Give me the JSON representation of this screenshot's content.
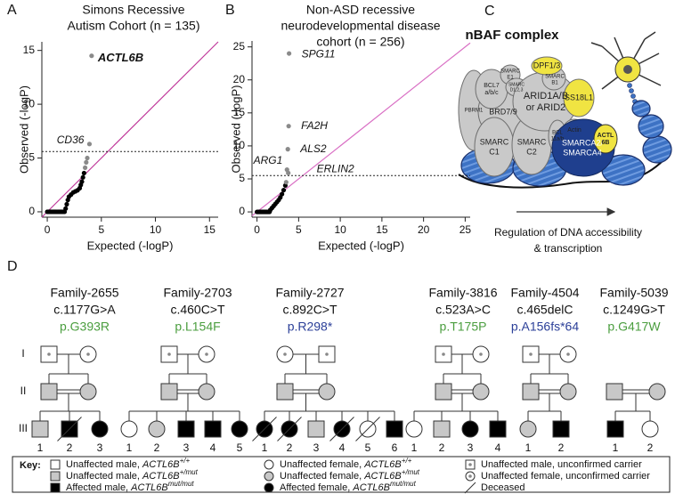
{
  "chart_data": [
    {
      "type": "scatter",
      "panel": "A",
      "title": [
        "Simons Recessive",
        "Autism Cohort (n = 135)"
      ],
      "x_label": "Expected (-logP)",
      "y_label": "Observed (-logP)",
      "xlim": [
        -0.5,
        15.8
      ],
      "ylim": [
        -0.5,
        15.8
      ],
      "xticks": [
        0,
        5,
        10,
        15
      ],
      "yticks": [
        0,
        5,
        10,
        15
      ],
      "threshold": 5.6,
      "diagonal_color": "#c0399b",
      "series": [
        {
          "color": "#000000",
          "x": [
            0,
            0.1,
            0.2,
            0.3,
            0.4,
            0.5,
            0.6,
            0.7,
            0.8,
            0.9,
            1.0,
            1.1,
            1.2,
            1.3,
            1.4,
            1.5,
            1.6,
            1.7,
            1.8,
            1.9,
            2.0,
            2.2,
            2.4,
            2.6,
            2.8,
            3.0,
            3.1,
            3.2,
            3.3,
            3.4
          ],
          "values": [
            0,
            0,
            0,
            0,
            0,
            0,
            0,
            0,
            0,
            0,
            0,
            0,
            0,
            0,
            0,
            0,
            0,
            0.3,
            0.7,
            1.1,
            1.4,
            1.6,
            1.8,
            1.9,
            2.0,
            2.2,
            2.5,
            2.8,
            3.2,
            3.6
          ]
        },
        {
          "color": "#8a8a8a",
          "x": [
            3.5,
            3.6,
            3.7
          ],
          "values": [
            4.1,
            4.6,
            5.0
          ]
        },
        {
          "color": "#8a8a8a",
          "x": [
            3.9,
            4.1
          ],
          "values": [
            6.3,
            14.5
          ],
          "point_labels": [
            "CD36",
            "ACTL6B"
          ]
        }
      ]
    },
    {
      "type": "scatter",
      "panel": "B",
      "title": [
        "Non-ASD recessive",
        "neurodevelopmental disease",
        "cohort (n = 256)"
      ],
      "x_label": "Expected (-logP)",
      "y_label": "Observed (-logP)",
      "xlim": [
        -0.6,
        25.6
      ],
      "ylim": [
        -0.8,
        25.9
      ],
      "xticks": [
        0,
        5,
        10,
        15,
        20,
        25
      ],
      "yticks": [
        0,
        5,
        10,
        15,
        20,
        25
      ],
      "threshold": 5.5,
      "diagonal_color": "#d96fc4",
      "series": [
        {
          "color": "#000000",
          "x": [
            0,
            0.1,
            0.2,
            0.3,
            0.4,
            0.5,
            0.6,
            0.7,
            0.8,
            0.9,
            1.0,
            1.1,
            1.2,
            1.3,
            1.4,
            1.5,
            1.6,
            1.8,
            2.0,
            2.2,
            2.4,
            2.6,
            2.8,
            3.0,
            3.2,
            3.4
          ],
          "values": [
            0,
            0,
            0,
            0,
            0,
            0,
            0,
            0,
            0,
            0,
            0,
            0,
            0,
            0,
            0,
            0,
            0.3,
            0.6,
            0.9,
            1.2,
            1.5,
            1.8,
            2.2,
            2.7,
            3.3,
            4.0
          ]
        },
        {
          "color": "#8a8a8a",
          "x": [
            3.5
          ],
          "values": [
            4.5
          ]
        },
        {
          "color": "#8a8a8a",
          "x": [
            3.6,
            3.75,
            3.7,
            3.8,
            3.85
          ],
          "values": [
            6.4,
            5.9,
            9.5,
            13.0,
            24.0
          ],
          "point_labels": [
            "ARG1",
            "ERLIN2",
            "ALS2",
            "FA2H",
            "SPG11"
          ]
        }
      ]
    }
  ],
  "panel_c": {
    "panel": "C",
    "title": "nBAF complex",
    "components": [
      [
        "PBRM1"
      ],
      [
        "BCL7",
        "a/b/c"
      ],
      [
        "SMARC",
        "E1"
      ],
      [
        "SMARC",
        "D1,2,3"
      ],
      [
        "DPF1/3"
      ],
      [
        "SMARC",
        "B1"
      ],
      [
        "BRD7/9"
      ],
      [
        "ARID1A/B",
        "or ARID2"
      ],
      [
        "SS18L1"
      ],
      [
        "SMARC",
        "C1"
      ],
      [
        "SMARC",
        "C2"
      ],
      [
        "BCL",
        "11a/b"
      ],
      [
        "Actin"
      ],
      [
        "SMARCA2/",
        "SMARCA4"
      ],
      [
        "ACTL",
        "6B"
      ]
    ],
    "caption": [
      "Regulation of DNA accessibility",
      "& transcription"
    ]
  },
  "panel_d": {
    "panel": "D",
    "generations": [
      "I",
      "II",
      "III"
    ],
    "families": [
      {
        "name": "Family-2655",
        "mutation": "c.1177G>A",
        "protein": "p.G393R",
        "protein_color": "#4a9d3e",
        "children": [
          "1",
          "2",
          "3"
        ]
      },
      {
        "name": "Family-2703",
        "mutation": "c.460C>T",
        "protein": "p.L154F",
        "protein_color": "#4a9d3e",
        "children": [
          "1",
          "2",
          "3",
          "4",
          "5"
        ]
      },
      {
        "name": "Family-2727",
        "mutation": "c.892C>T",
        "protein": "p.R298*",
        "protein_color": "#2b3f98",
        "children": [
          "1",
          "2",
          "3",
          "4",
          "5",
          "6"
        ]
      },
      {
        "name": "Family-3816",
        "mutation": "c.523A>C",
        "protein": "p.T175P",
        "protein_color": "#4a9d3e",
        "children": [
          "1",
          "2",
          "3",
          "4"
        ]
      },
      {
        "name": "Family-4504",
        "mutation": "c.465delC",
        "protein": "p.A156fs*64",
        "protein_color": "#2b3f98",
        "children": [
          "1",
          "2"
        ]
      },
      {
        "name": "Family-5039",
        "mutation": "c.1249G>T",
        "protein": "p.G417W",
        "protein_color": "#4a9d3e",
        "children": [
          "1",
          "2"
        ]
      }
    ],
    "key": {
      "title": "Key:",
      "items": [
        {
          "text": "Unaffected male, ",
          "gene": "ACTL6B",
          "genotype": "+/+"
        },
        {
          "text": "Unaffected female, ",
          "gene": "ACTL6B",
          "genotype": "+/+"
        },
        {
          "text": "Unaffected male, unconfirmed carrier"
        },
        {
          "text": "Unaffected male, ",
          "gene": "ACTL6B",
          "genotype": "+/mut"
        },
        {
          "text": "Unaffected female, ",
          "gene": "ACTL6B",
          "genotype": "+/mut"
        },
        {
          "text": "Unaffected female, unconfirmed carrier"
        },
        {
          "text": "Affected male, ",
          "gene": "ACTL6B",
          "genotype": "mut/mut"
        },
        {
          "text": "Affected female, ",
          "gene": "ACTL6B",
          "genotype": "mut/mut"
        },
        {
          "text": "Deceased"
        }
      ]
    }
  }
}
